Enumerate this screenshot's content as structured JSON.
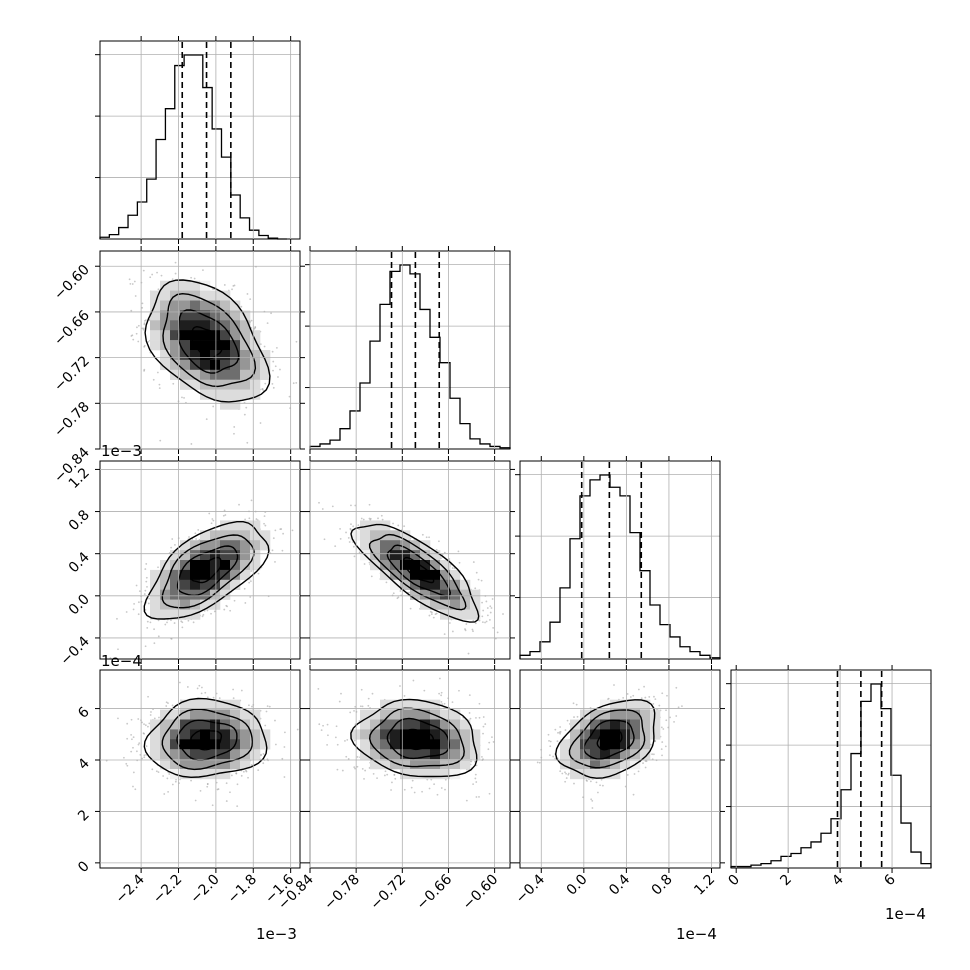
{
  "chart_data": {
    "type": "corner",
    "title": "",
    "parameters": [
      {
        "index": 0,
        "range": [
          -2.62,
          -1.55
        ],
        "scale_label": "1e−3",
        "ticks": [
          -2.4,
          -2.2,
          -2.0,
          -1.8,
          -1.6
        ],
        "tick_labels": [
          "−2.4",
          "−2.2",
          "−2.0",
          "−1.8",
          "−1.6"
        ],
        "quantiles": [
          -2.18,
          -2.05,
          -1.92
        ]
      },
      {
        "index": 1,
        "range": [
          -0.84,
          -0.58
        ],
        "scale_label": "1e−3",
        "ticks": [
          -0.84,
          -0.78,
          -0.72,
          -0.66,
          -0.6
        ],
        "tick_labels": [
          "−0.84",
          "−0.78",
          "−0.72",
          "−0.66",
          "−0.60"
        ],
        "quantiles": [
          -0.734,
          -0.703,
          -0.672
        ]
      },
      {
        "index": 2,
        "range": [
          -0.6,
          1.28
        ],
        "scale_label": "1e−4",
        "ticks": [
          -0.4,
          0.0,
          0.4,
          0.8,
          1.2
        ],
        "tick_labels": [
          "−0.4",
          "0.0",
          "0.4",
          "0.8",
          "1.2"
        ],
        "quantiles": [
          -0.02,
          0.24,
          0.54
        ]
      },
      {
        "index": 3,
        "range": [
          -0.2,
          7.5
        ],
        "scale_label": "1e−4",
        "ticks": [
          0,
          2,
          4,
          6
        ],
        "tick_labels": [
          "0",
          "2",
          "4",
          "6"
        ],
        "quantiles": [
          3.9,
          4.8,
          5.6
        ]
      }
    ],
    "diagonal_histograms": [
      {
        "param": 0,
        "bin_start": -2.62,
        "bin_width": 0.05,
        "counts": [
          2,
          5,
          13,
          27,
          42,
          68,
          113,
          148,
          197,
          209,
          209,
          172,
          125,
          93,
          50,
          24,
          10,
          4,
          1,
          0
        ]
      },
      {
        "param": 1,
        "bin_start": -0.84,
        "bin_width": 0.013,
        "counts": [
          2,
          4,
          7,
          16,
          30,
          52,
          85,
          114,
          140,
          145,
          138,
          110,
          88,
          68,
          40,
          20,
          8,
          4,
          2,
          1
        ]
      },
      {
        "param": 2,
        "bin_start": -0.6,
        "bin_width": 0.094,
        "counts": [
          3,
          6,
          14,
          30,
          58,
          98,
          133,
          146,
          150,
          140,
          133,
          103,
          72,
          44,
          28,
          18,
          10,
          6,
          3,
          1
        ]
      },
      {
        "param": 3,
        "bin_start": -0.2,
        "bin_width": 0.385,
        "counts": [
          1,
          1,
          2,
          3,
          5,
          8,
          10,
          14,
          18,
          24,
          34,
          54,
          79,
          115,
          127,
          110,
          64,
          31,
          11,
          3
        ]
      }
    ],
    "pair_plots": [
      {
        "x_param": 0,
        "y_param": 1,
        "center": [
          -2.05,
          -0.7
        ],
        "sigma": [
          0.16,
          0.04
        ],
        "rho": -0.4
      },
      {
        "x_param": 0,
        "y_param": 2,
        "center": [
          -2.05,
          0.24
        ],
        "sigma": [
          0.16,
          0.23
        ],
        "rho": 0.6
      },
      {
        "x_param": 1,
        "y_param": 2,
        "center": [
          -0.7,
          0.24
        ],
        "sigma": [
          0.04,
          0.23
        ],
        "rho": -0.78
      },
      {
        "x_param": 0,
        "y_param": 3,
        "center": [
          -2.05,
          4.8
        ],
        "sigma": [
          0.16,
          0.75
        ],
        "rho": 0.05
      },
      {
        "x_param": 1,
        "y_param": 3,
        "center": [
          -0.7,
          4.8
        ],
        "sigma": [
          0.04,
          0.75
        ],
        "rho": -0.15
      },
      {
        "x_param": 2,
        "y_param": 3,
        "center": [
          0.24,
          4.8
        ],
        "sigma": [
          0.23,
          0.75
        ],
        "rho": 0.35
      }
    ],
    "contour_levels_sigma": [
      0.5,
      1.0,
      1.5,
      2.0
    ],
    "grid": true
  }
}
